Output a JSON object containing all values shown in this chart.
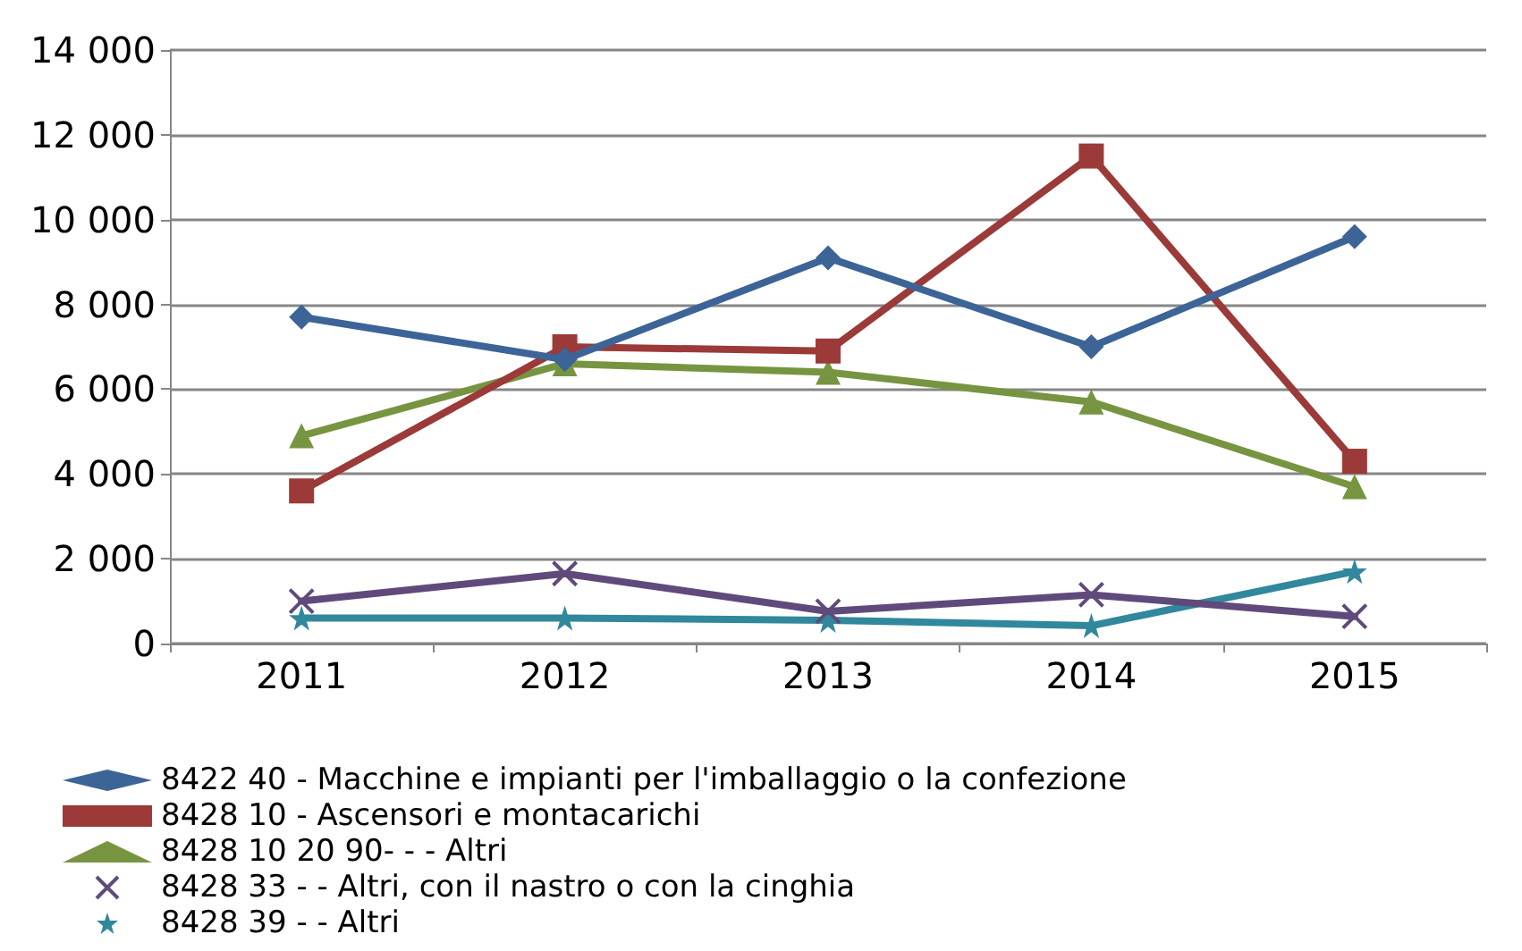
{
  "chart_data": {
    "type": "line",
    "categories": [
      "2011",
      "2012",
      "2013",
      "2014",
      "2015"
    ],
    "ylim": [
      0,
      14000
    ],
    "yticks": [
      {
        "value": 0,
        "label": "0"
      },
      {
        "value": 2000,
        "label": "2 000"
      },
      {
        "value": 4000,
        "label": "4 000"
      },
      {
        "value": 6000,
        "label": "6 000"
      },
      {
        "value": 8000,
        "label": "8 000"
      },
      {
        "value": 10000,
        "label": "10 000"
      },
      {
        "value": 12000,
        "label": "12 000"
      },
      {
        "value": 14000,
        "label": "14 000"
      }
    ],
    "grid": "y",
    "legend": "bottom",
    "series": [
      {
        "name": "8422 40 - Macchine e impianti per l'imballaggio o la confezione",
        "color": "#3c6497",
        "marker": "diamond",
        "values": [
          7700,
          6700,
          9100,
          7000,
          9600
        ]
      },
      {
        "name": "8428 10 - Ascensori e montacarichi",
        "color": "#9b3a38",
        "marker": "square",
        "values": [
          3600,
          7000,
          6900,
          11500,
          4300
        ]
      },
      {
        "name": "8428 10 20 90- - - Altri",
        "color": "#779540",
        "marker": "triangle",
        "values": [
          4900,
          6600,
          6400,
          5700,
          3700
        ]
      },
      {
        "name": "8428 33 - - Altri, con il nastro o con la cinghia",
        "color": "#604a7b",
        "marker": "cross",
        "values": [
          1000,
          1650,
          760,
          1150,
          640
        ]
      },
      {
        "name": "8428 39 - - Altri",
        "color": "#31879c",
        "marker": "star",
        "values": [
          600,
          600,
          550,
          420,
          1700
        ]
      }
    ]
  }
}
